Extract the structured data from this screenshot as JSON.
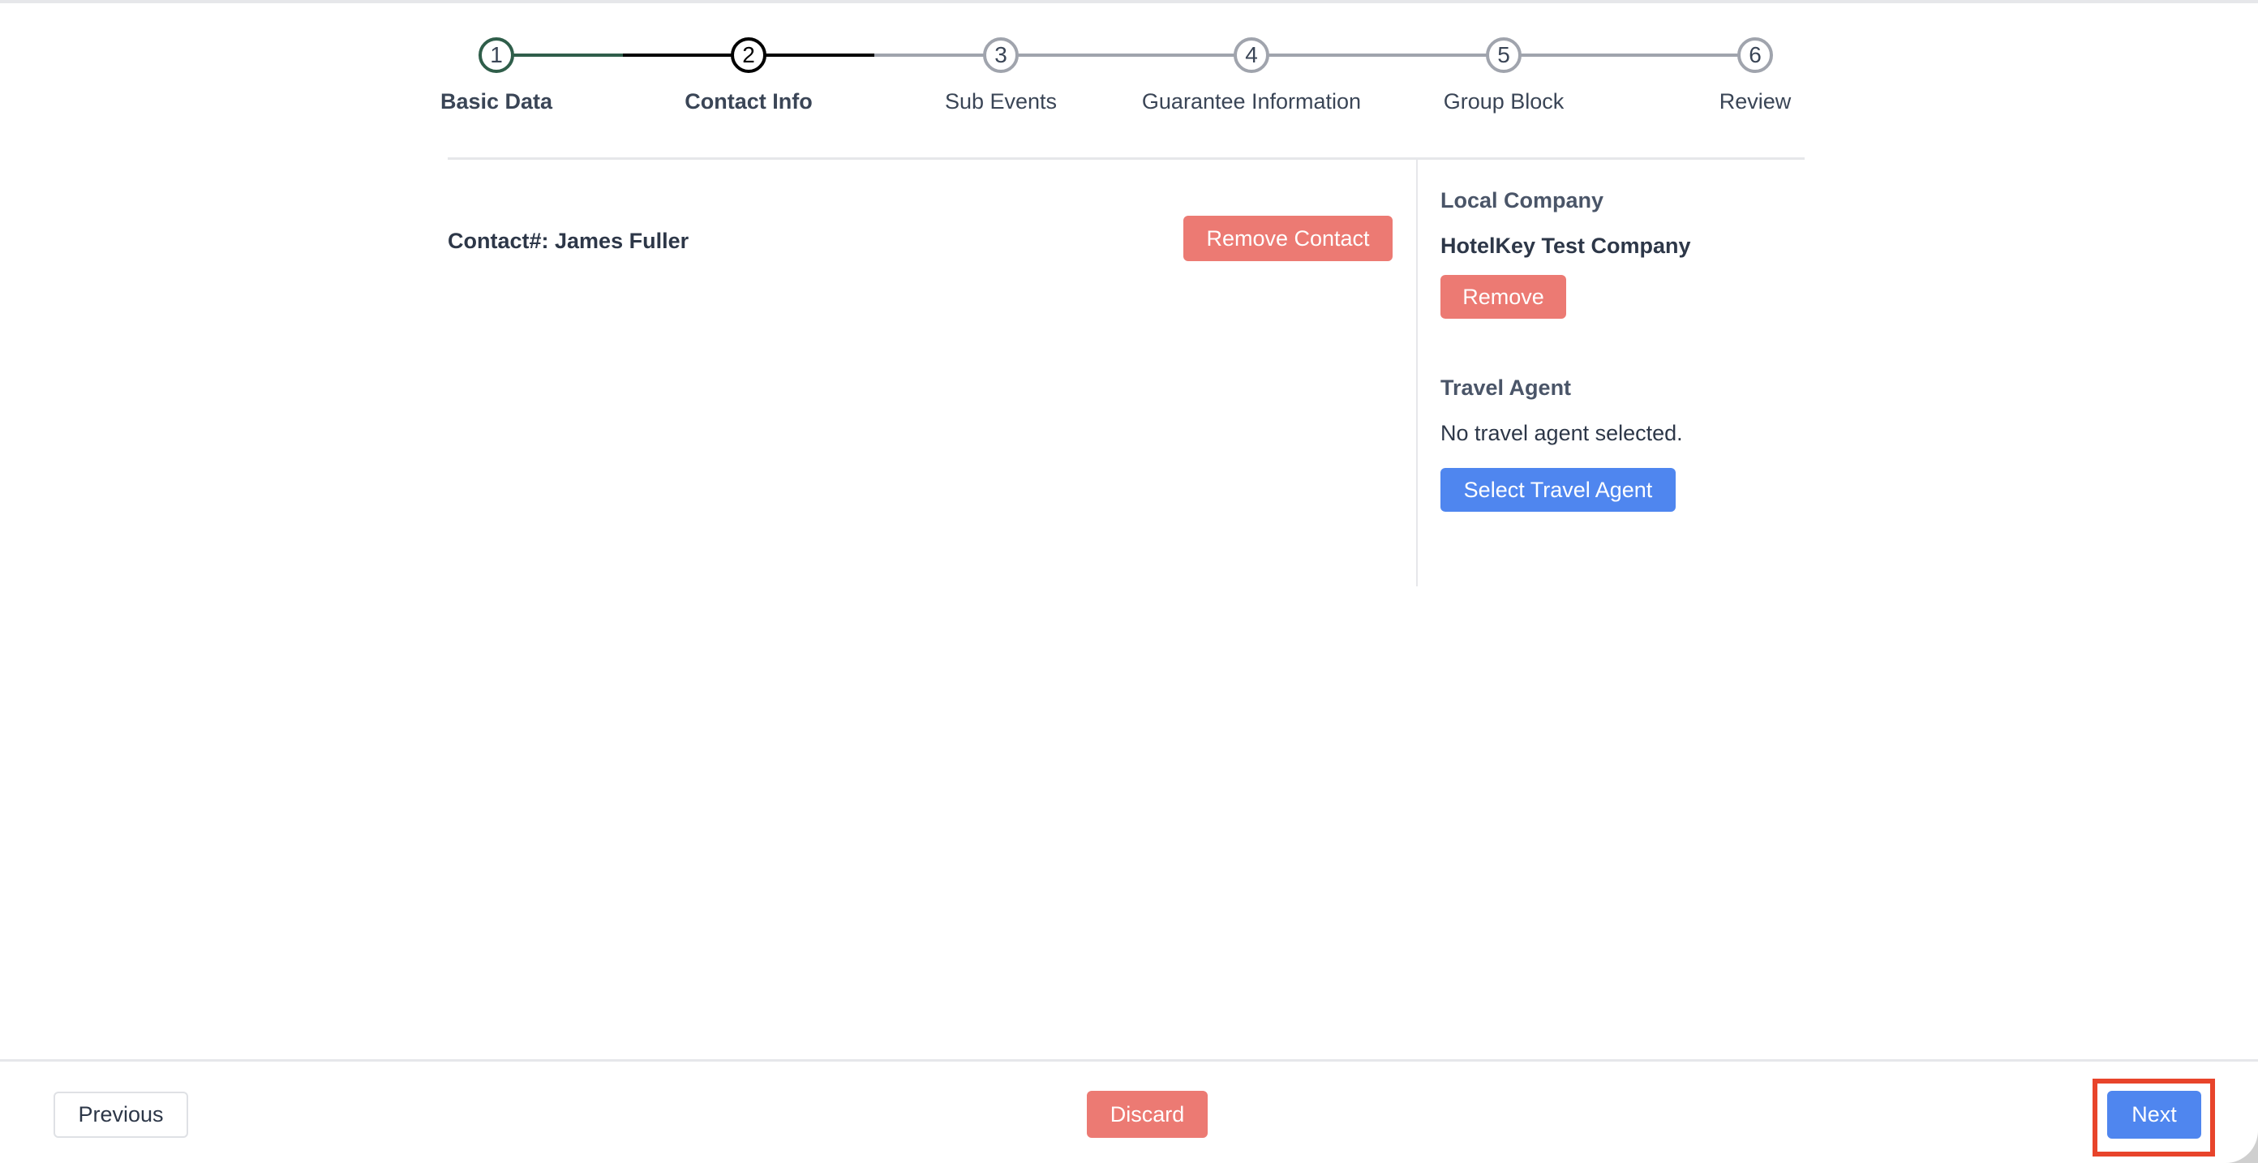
{
  "stepper": {
    "steps": [
      {
        "number": "1",
        "label": "Basic Data",
        "state": "completed"
      },
      {
        "number": "2",
        "label": "Contact Info",
        "state": "active"
      },
      {
        "number": "3",
        "label": "Sub Events",
        "state": "pending"
      },
      {
        "number": "4",
        "label": "Guarantee Information",
        "state": "pending"
      },
      {
        "number": "5",
        "label": "Group Block",
        "state": "pending"
      },
      {
        "number": "6",
        "label": "Review",
        "state": "pending"
      }
    ]
  },
  "contact": {
    "label": "Contact#: James Fuller",
    "remove_label": "Remove Contact"
  },
  "local_company": {
    "heading": "Local Company",
    "name": "HotelKey Test Company",
    "remove_label": "Remove"
  },
  "travel_agent": {
    "heading": "Travel Agent",
    "status": "No travel agent selected.",
    "select_label": "Select Travel Agent"
  },
  "footer": {
    "previous_label": "Previous",
    "discard_label": "Discard",
    "next_label": "Next"
  },
  "colors": {
    "completed": "#2f5e4a",
    "active": "#000000",
    "pending": "#a0a4ad",
    "danger": "#ec7a73",
    "primary": "#4f86ef",
    "highlight": "#e8442b"
  }
}
